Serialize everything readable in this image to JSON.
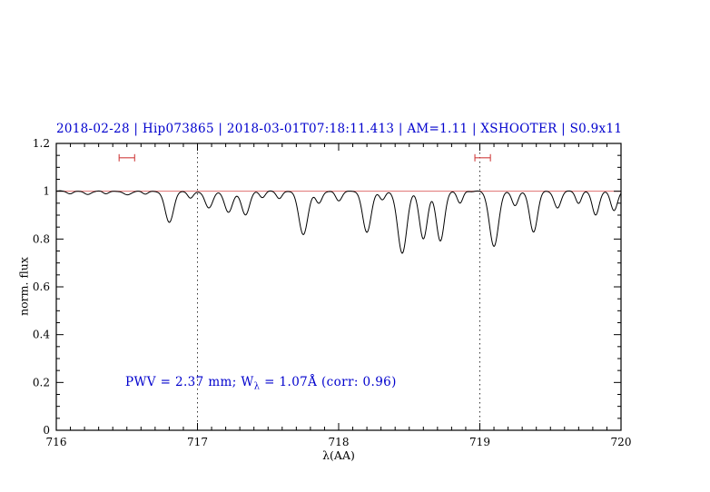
{
  "title": "2018-02-28 | Hip073865 | 2018-03-01T07:18:11.413 | AM=1.11 | XSHOOTER | S0.9x11",
  "colors": {
    "title": "#0000cd",
    "annotation": "#0000cd",
    "spectrum": "#000000",
    "continuum": "#e07070",
    "marker": "#d04040",
    "frame": "#000000"
  },
  "annotation": {
    "part1": "PWV = 2.37 mm; W",
    "sub": "λ",
    "part2": " = 1.07Å (corr: 0.96)"
  },
  "axes": {
    "xlabel": "λ(AA)",
    "ylabel": "norm. flux"
  },
  "chart_data": {
    "type": "line",
    "title": "2018-02-28 | Hip073865 | 2018-03-01T07:18:11.413 | AM=1.11 | XSHOOTER | S0.9x11",
    "xlabel": "λ(AA)",
    "ylabel": "norm. flux",
    "xlim": [
      716,
      720
    ],
    "ylim": [
      0,
      1.2
    ],
    "xticks": [
      716,
      717,
      718,
      719,
      720
    ],
    "yticks": [
      0,
      0.2,
      0.4,
      0.6,
      0.8,
      1,
      1.2
    ],
    "x_minor_step": 0.1,
    "y_minor_step": 0.05,
    "grid": false,
    "legend": "none",
    "continuum_level": 1.0,
    "dotted_guides_x": [
      717,
      719
    ],
    "range_markers": [
      {
        "x_center": 716.5,
        "half_width": 0.055,
        "y": 1.14
      },
      {
        "x_center": 719.02,
        "half_width": 0.055,
        "y": 1.14
      }
    ],
    "absorption_lines": [
      {
        "center": 716.1,
        "depth": 0.01,
        "sigma": 0.02
      },
      {
        "center": 716.22,
        "depth": 0.014,
        "sigma": 0.022
      },
      {
        "center": 716.35,
        "depth": 0.01,
        "sigma": 0.02
      },
      {
        "center": 716.5,
        "depth": 0.016,
        "sigma": 0.025
      },
      {
        "center": 716.63,
        "depth": 0.012,
        "sigma": 0.02
      },
      {
        "center": 716.8,
        "depth": 0.13,
        "sigma": 0.03
      },
      {
        "center": 716.95,
        "depth": 0.03,
        "sigma": 0.02
      },
      {
        "center": 717.08,
        "depth": 0.07,
        "sigma": 0.028
      },
      {
        "center": 717.22,
        "depth": 0.09,
        "sigma": 0.028
      },
      {
        "center": 717.34,
        "depth": 0.1,
        "sigma": 0.028
      },
      {
        "center": 717.46,
        "depth": 0.025,
        "sigma": 0.02
      },
      {
        "center": 717.58,
        "depth": 0.03,
        "sigma": 0.02
      },
      {
        "center": 717.75,
        "depth": 0.18,
        "sigma": 0.032
      },
      {
        "center": 717.86,
        "depth": 0.05,
        "sigma": 0.022
      },
      {
        "center": 718.0,
        "depth": 0.04,
        "sigma": 0.022
      },
      {
        "center": 718.2,
        "depth": 0.17,
        "sigma": 0.03
      },
      {
        "center": 718.31,
        "depth": 0.035,
        "sigma": 0.02
      },
      {
        "center": 718.45,
        "depth": 0.26,
        "sigma": 0.032
      },
      {
        "center": 718.6,
        "depth": 0.2,
        "sigma": 0.028
      },
      {
        "center": 718.72,
        "depth": 0.21,
        "sigma": 0.028
      },
      {
        "center": 718.86,
        "depth": 0.05,
        "sigma": 0.02
      },
      {
        "center": 719.1,
        "depth": 0.23,
        "sigma": 0.032
      },
      {
        "center": 719.25,
        "depth": 0.06,
        "sigma": 0.022
      },
      {
        "center": 719.38,
        "depth": 0.17,
        "sigma": 0.028
      },
      {
        "center": 719.55,
        "depth": 0.07,
        "sigma": 0.024
      },
      {
        "center": 719.7,
        "depth": 0.05,
        "sigma": 0.02
      },
      {
        "center": 719.82,
        "depth": 0.1,
        "sigma": 0.024
      },
      {
        "center": 719.95,
        "depth": 0.08,
        "sigma": 0.024
      }
    ]
  }
}
